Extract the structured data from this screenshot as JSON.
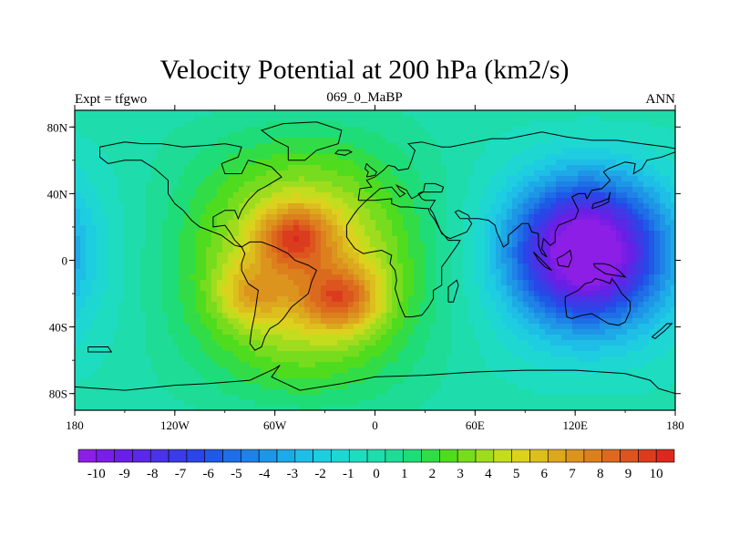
{
  "title": "Velocity Potential at 200 hPa (km2/s)",
  "left_string": "Expt = tfgwo",
  "center_string": "069_0_MaBP",
  "right_string": "ANN",
  "axes": {
    "lon_ticks": [
      {
        "value": -180,
        "label": "180"
      },
      {
        "value": -120,
        "label": "120W"
      },
      {
        "value": -60,
        "label": "60W"
      },
      {
        "value": 0,
        "label": "0"
      },
      {
        "value": 60,
        "label": "60E"
      },
      {
        "value": 120,
        "label": "120E"
      },
      {
        "value": 180,
        "label": "180"
      }
    ],
    "lat_ticks": [
      {
        "value": 80,
        "label": "80N"
      },
      {
        "value": 40,
        "label": "40N"
      },
      {
        "value": 0,
        "label": "0"
      },
      {
        "value": -40,
        "label": "40S"
      },
      {
        "value": -80,
        "label": "80S"
      }
    ],
    "lon_range": [
      -180,
      180
    ],
    "lat_range": [
      -90,
      90
    ]
  },
  "colorbar": {
    "labels": [
      "-10",
      "-9",
      "-8",
      "-7",
      "-6",
      "-5",
      "-4",
      "-3",
      "-2",
      "-1",
      "0",
      "1",
      "2",
      "3",
      "4",
      "5",
      "6",
      "7",
      "8",
      "9",
      "10"
    ],
    "colors": [
      "#8c1ee6",
      "#7a1ee6",
      "#6a1fe6",
      "#5a28e6",
      "#4a32e6",
      "#3a3ce6",
      "#2a46e8",
      "#1e5ae6",
      "#1e6ee6",
      "#1e82e6",
      "#1e96e6",
      "#1eaae6",
      "#1ebee6",
      "#1ecde0",
      "#1ed7d2",
      "#1edcc0",
      "#1edcac",
      "#1edc96",
      "#1edc78",
      "#32dc46",
      "#50dc1e",
      "#78dc1e",
      "#a0dc1e",
      "#c3dc1e",
      "#dcd21e",
      "#dcbe1e",
      "#dca81e",
      "#dc941e",
      "#dc801e",
      "#dc6a1e",
      "#dc541e",
      "#dc3c1e",
      "#dc281e"
    ]
  },
  "field_centers": [
    {
      "lon": 127,
      "lat": 5,
      "amplitude": -11,
      "lon_scale": 30,
      "lat_scale": 28
    },
    {
      "lon": -48,
      "lat": 14,
      "amplitude": 4.5,
      "lon_scale": 15,
      "lat_scale": 13
    },
    {
      "lon": -20,
      "lat": -23,
      "amplitude": 4.5,
      "lon_scale": 16,
      "lat_scale": 13
    },
    {
      "lon": -75,
      "lat": -20,
      "amplitude": 2.5,
      "lon_scale": 14,
      "lat_scale": 12
    },
    {
      "lon": -40,
      "lat": -5,
      "amplitude": 4.5,
      "lon_scale": 45,
      "lat_scale": 48
    }
  ],
  "coastlines": [
    [
      [
        -165,
        68
      ],
      [
        -150,
        71
      ],
      [
        -140,
        70
      ],
      [
        -128,
        70
      ],
      [
        -115,
        68
      ],
      [
        -100,
        69
      ],
      [
        -90,
        70
      ],
      [
        -80,
        68
      ],
      [
        -82,
        62
      ],
      [
        -92,
        58
      ],
      [
        -90,
        52
      ],
      [
        -80,
        52
      ],
      [
        -76,
        60
      ],
      [
        -68,
        58
      ],
      [
        -62,
        56
      ],
      [
        -56,
        50
      ],
      [
        -66,
        44
      ],
      [
        -70,
        42
      ],
      [
        -76,
        36
      ],
      [
        -80,
        30
      ],
      [
        -82,
        25
      ],
      [
        -84,
        30
      ],
      [
        -90,
        30
      ],
      [
        -97,
        26
      ],
      [
        -97,
        20
      ],
      [
        -90,
        21
      ],
      [
        -87,
        17
      ],
      [
        -84,
        12
      ],
      [
        -80,
        8
      ],
      [
        -84,
        9
      ],
      [
        -92,
        15
      ],
      [
        -105,
        20
      ],
      [
        -110,
        24
      ],
      [
        -115,
        30
      ],
      [
        -120,
        34
      ],
      [
        -124,
        40
      ],
      [
        -124,
        48
      ],
      [
        -132,
        55
      ],
      [
        -140,
        60
      ],
      [
        -150,
        60
      ],
      [
        -160,
        58
      ],
      [
        -165,
        62
      ],
      [
        -165,
        68
      ]
    ],
    [
      [
        -80,
        8
      ],
      [
        -75,
        11
      ],
      [
        -68,
        11
      ],
      [
        -60,
        8
      ],
      [
        -52,
        4
      ],
      [
        -48,
        0
      ],
      [
        -40,
        -3
      ],
      [
        -35,
        -6
      ],
      [
        -38,
        -13
      ],
      [
        -40,
        -20
      ],
      [
        -45,
        -24
      ],
      [
        -50,
        -28
      ],
      [
        -55,
        -35
      ],
      [
        -58,
        -38
      ],
      [
        -63,
        -41
      ],
      [
        -66,
        -46
      ],
      [
        -68,
        -52
      ],
      [
        -72,
        -54
      ],
      [
        -75,
        -50
      ],
      [
        -74,
        -42
      ],
      [
        -72,
        -32
      ],
      [
        -71,
        -25
      ],
      [
        -70,
        -18
      ],
      [
        -76,
        -14
      ],
      [
        -80,
        -6
      ],
      [
        -80,
        -2
      ],
      [
        -78,
        4
      ],
      [
        -80,
        8
      ]
    ],
    [
      [
        -52,
        60
      ],
      [
        -42,
        60
      ],
      [
        -35,
        66
      ],
      [
        -22,
        70
      ],
      [
        -20,
        78
      ],
      [
        -35,
        83
      ],
      [
        -55,
        82
      ],
      [
        -68,
        78
      ],
      [
        -60,
        72
      ],
      [
        -52,
        68
      ],
      [
        -52,
        60
      ]
    ],
    [
      [
        -10,
        36
      ],
      [
        -9,
        43
      ],
      [
        -2,
        44
      ],
      [
        -5,
        48
      ],
      [
        0,
        50
      ],
      [
        5,
        54
      ],
      [
        8,
        57
      ],
      [
        12,
        56
      ],
      [
        14,
        54
      ],
      [
        20,
        55
      ],
      [
        22,
        60
      ],
      [
        24,
        66
      ],
      [
        20,
        70
      ],
      [
        28,
        71
      ],
      [
        40,
        68
      ],
      [
        45,
        68
      ],
      [
        55,
        70
      ],
      [
        70,
        73
      ],
      [
        80,
        73
      ],
      [
        100,
        77
      ],
      [
        115,
        74
      ],
      [
        130,
        72
      ],
      [
        145,
        72
      ],
      [
        160,
        70
      ],
      [
        175,
        68
      ],
      [
        180,
        67
      ],
      [
        180,
        65
      ],
      [
        172,
        62
      ],
      [
        163,
        60
      ],
      [
        160,
        55
      ],
      [
        155,
        52
      ],
      [
        156,
        58
      ],
      [
        150,
        59
      ],
      [
        140,
        55
      ],
      [
        137,
        53
      ],
      [
        141,
        48
      ],
      [
        136,
        43
      ],
      [
        130,
        42
      ],
      [
        127,
        37
      ],
      [
        126,
        40
      ],
      [
        122,
        40
      ],
      [
        118,
        38
      ],
      [
        121,
        32
      ],
      [
        122,
        30
      ],
      [
        120,
        25
      ],
      [
        110,
        21
      ],
      [
        108,
        17
      ],
      [
        108,
        11
      ],
      [
        105,
        9
      ],
      [
        103,
        11
      ],
      [
        101,
        13
      ],
      [
        100,
        7
      ],
      [
        103,
        2
      ],
      [
        100,
        4
      ],
      [
        98,
        9
      ],
      [
        98,
        16
      ],
      [
        94,
        17
      ],
      [
        92,
        22
      ],
      [
        88,
        22
      ],
      [
        86,
        20
      ],
      [
        80,
        15
      ],
      [
        80,
        10
      ],
      [
        77,
        8
      ],
      [
        73,
        17
      ],
      [
        72,
        21
      ],
      [
        68,
        24
      ],
      [
        62,
        25
      ],
      [
        57,
        25
      ],
      [
        56,
        27
      ],
      [
        50,
        30
      ],
      [
        48,
        29
      ],
      [
        51,
        25
      ],
      [
        56,
        25
      ],
      [
        58,
        22
      ],
      [
        55,
        17
      ],
      [
        45,
        13
      ],
      [
        43,
        14
      ],
      [
        40,
        16
      ],
      [
        35,
        28
      ],
      [
        33,
        31
      ],
      [
        36,
        36
      ],
      [
        30,
        36
      ],
      [
        28,
        37
      ],
      [
        26,
        40
      ],
      [
        28,
        41
      ],
      [
        40,
        41
      ],
      [
        41,
        44
      ],
      [
        36,
        46
      ],
      [
        30,
        46
      ],
      [
        29,
        41
      ],
      [
        24,
        38
      ],
      [
        22,
        37
      ],
      [
        20,
        40
      ],
      [
        19,
        42
      ],
      [
        13,
        45
      ],
      [
        15,
        42
      ],
      [
        18,
        40
      ],
      [
        15,
        38
      ],
      [
        10,
        44
      ],
      [
        3,
        43
      ],
      [
        -5,
        36
      ],
      [
        -10,
        36
      ]
    ],
    [
      [
        -17,
        21
      ],
      [
        -17,
        14
      ],
      [
        -15,
        11
      ],
      [
        -12,
        7
      ],
      [
        -7,
        4
      ],
      [
        -2,
        5
      ],
      [
        4,
        6
      ],
      [
        8,
        4
      ],
      [
        10,
        3
      ],
      [
        9,
        -2
      ],
      [
        12,
        -6
      ],
      [
        13,
        -12
      ],
      [
        12,
        -17
      ],
      [
        15,
        -27
      ],
      [
        18,
        -34
      ],
      [
        22,
        -34
      ],
      [
        28,
        -33
      ],
      [
        32,
        -28
      ],
      [
        35,
        -23
      ],
      [
        35,
        -18
      ],
      [
        40,
        -15
      ],
      [
        40,
        -10
      ],
      [
        40,
        -4
      ],
      [
        43,
        0
      ],
      [
        50,
        10
      ],
      [
        51,
        12
      ],
      [
        44,
        12
      ],
      [
        39,
        18
      ],
      [
        36,
        24
      ],
      [
        33,
        28
      ],
      [
        32,
        31
      ],
      [
        30,
        31
      ],
      [
        20,
        32
      ],
      [
        15,
        32
      ],
      [
        10,
        34
      ],
      [
        10,
        37
      ],
      [
        0,
        36
      ],
      [
        -5,
        36
      ],
      [
        -10,
        31
      ],
      [
        -13,
        27
      ],
      [
        -17,
        21
      ]
    ],
    [
      [
        44,
        -25
      ],
      [
        47,
        -25
      ],
      [
        50,
        -15
      ],
      [
        49,
        -12
      ],
      [
        44,
        -16
      ],
      [
        44,
        -25
      ]
    ],
    [
      [
        114,
        -22
      ],
      [
        114,
        -26
      ],
      [
        115,
        -34
      ],
      [
        118,
        -35
      ],
      [
        124,
        -33
      ],
      [
        130,
        -32
      ],
      [
        135,
        -35
      ],
      [
        140,
        -38
      ],
      [
        146,
        -39
      ],
      [
        150,
        -37
      ],
      [
        153,
        -30
      ],
      [
        153,
        -25
      ],
      [
        148,
        -20
      ],
      [
        145,
        -15
      ],
      [
        142,
        -11
      ],
      [
        141,
        -14
      ],
      [
        136,
        -12
      ],
      [
        132,
        -11
      ],
      [
        130,
        -13
      ],
      [
        126,
        -14
      ],
      [
        122,
        -18
      ],
      [
        114,
        -22
      ]
    ],
    [
      [
        131,
        -2
      ],
      [
        137,
        -2
      ],
      [
        141,
        -3
      ],
      [
        146,
        -6
      ],
      [
        150,
        -10
      ],
      [
        144,
        -9
      ],
      [
        138,
        -8
      ],
      [
        132,
        -4
      ],
      [
        131,
        -2
      ]
    ],
    [
      [
        95,
        5
      ],
      [
        100,
        0
      ],
      [
        104,
        -4
      ],
      [
        106,
        -6
      ],
      [
        102,
        -4
      ],
      [
        98,
        0
      ],
      [
        95,
        5
      ]
    ],
    [
      [
        109,
        1
      ],
      [
        110,
        -3
      ],
      [
        116,
        -4
      ],
      [
        118,
        1
      ],
      [
        117,
        6
      ],
      [
        113,
        3
      ],
      [
        109,
        1
      ]
    ],
    [
      [
        130,
        31
      ],
      [
        131,
        34
      ],
      [
        135,
        35
      ],
      [
        140,
        37
      ],
      [
        141,
        41
      ],
      [
        140,
        35
      ],
      [
        136,
        33
      ],
      [
        130,
        31
      ]
    ],
    [
      [
        -5,
        50
      ],
      [
        0,
        51
      ],
      [
        1,
        53
      ],
      [
        -3,
        56
      ],
      [
        -5,
        58
      ],
      [
        -6,
        55
      ],
      [
        -4,
        53
      ],
      [
        -5,
        50
      ]
    ],
    [
      [
        -24,
        64
      ],
      [
        -22,
        66
      ],
      [
        -16,
        66
      ],
      [
        -14,
        65
      ],
      [
        -18,
        63
      ],
      [
        -24,
        64
      ]
    ],
    [
      [
        -180,
        -76
      ],
      [
        -150,
        -78
      ],
      [
        -120,
        -75
      ],
      [
        -100,
        -74
      ],
      [
        -75,
        -72
      ],
      [
        -60,
        -65
      ],
      [
        -57,
        -63
      ],
      [
        -62,
        -70
      ],
      [
        -45,
        -78
      ],
      [
        -20,
        -74
      ],
      [
        0,
        -70
      ],
      [
        30,
        -69
      ],
      [
        60,
        -67
      ],
      [
        90,
        -66
      ],
      [
        120,
        -66
      ],
      [
        150,
        -68
      ],
      [
        165,
        -72
      ],
      [
        170,
        -77
      ],
      [
        180,
        -80
      ]
    ],
    [
      [
        166,
        -46
      ],
      [
        172,
        -41
      ],
      [
        175,
        -38
      ],
      [
        178,
        -38
      ],
      [
        174,
        -42
      ],
      [
        168,
        -47
      ],
      [
        166,
        -46
      ]
    ],
    [
      [
        -172,
        -52
      ],
      [
        -160,
        -52
      ],
      [
        -158,
        -55
      ],
      [
        -172,
        -55
      ],
      [
        -172,
        -52
      ]
    ]
  ]
}
